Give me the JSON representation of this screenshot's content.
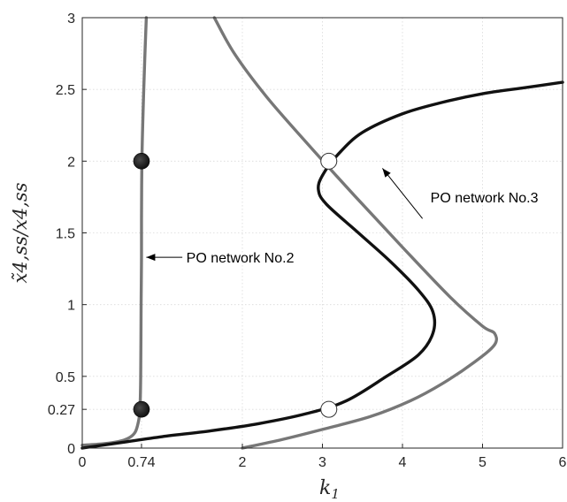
{
  "chart_data": {
    "type": "line",
    "title": "",
    "xlabel": "k",
    "xlabel_sub": "1",
    "ylabel": "x̃4,ss/x4,ss",
    "xlim": [
      0,
      6
    ],
    "ylim": [
      0,
      3
    ],
    "grid": true,
    "x_ticks": [
      {
        "value": 0,
        "label": "0"
      },
      {
        "value": 0.74,
        "label": "0.74"
      },
      {
        "value": 2,
        "label": "2"
      },
      {
        "value": 3,
        "label": "3"
      },
      {
        "value": 4,
        "label": "4"
      },
      {
        "value": 5,
        "label": "5"
      },
      {
        "value": 6,
        "label": "6"
      }
    ],
    "y_ticks": [
      {
        "value": 0,
        "label": "0"
      },
      {
        "value": 0.27,
        "label": "0.27"
      },
      {
        "value": 0.5,
        "label": "0.5"
      },
      {
        "value": 1,
        "label": "1"
      },
      {
        "value": 1.5,
        "label": "1.5"
      },
      {
        "value": 2,
        "label": "2"
      },
      {
        "value": 2.5,
        "label": "2.5"
      },
      {
        "value": 3,
        "label": "3"
      }
    ],
    "series": [
      {
        "name": "",
        "color": "#777777",
        "points": [
          [
            0,
            0.02
          ],
          [
            0.25,
            0.03
          ],
          [
            0.45,
            0.045
          ],
          [
            0.58,
            0.07
          ],
          [
            0.66,
            0.11
          ],
          [
            0.7,
            0.18
          ],
          [
            0.72,
            0.27
          ],
          [
            0.73,
            0.5
          ],
          [
            0.735,
            1.0
          ],
          [
            0.74,
            1.33
          ],
          [
            0.74,
            1.6
          ],
          [
            0.745,
            2.0
          ],
          [
            0.76,
            2.35
          ],
          [
            0.78,
            2.7
          ],
          [
            0.8,
            3.0
          ]
        ]
      },
      {
        "name": "",
        "color": "#777777",
        "points": [
          [
            1.65,
            3.0
          ],
          [
            1.9,
            2.75
          ],
          [
            2.3,
            2.45
          ],
          [
            2.8,
            2.13
          ],
          [
            3.4,
            1.76
          ],
          [
            4.0,
            1.4
          ],
          [
            4.6,
            1.05
          ],
          [
            5.0,
            0.85
          ],
          [
            5.15,
            0.8
          ],
          [
            5.15,
            0.72
          ],
          [
            4.9,
            0.6
          ],
          [
            4.5,
            0.45
          ],
          [
            4.1,
            0.33
          ],
          [
            3.6,
            0.22
          ],
          [
            3.0,
            0.13
          ],
          [
            2.5,
            0.06
          ],
          [
            2.0,
            0.0
          ]
        ]
      },
      {
        "name": "",
        "color": "#111111",
        "points": [
          [
            0,
            0.0
          ],
          [
            0.5,
            0.04
          ],
          [
            1.0,
            0.08
          ],
          [
            1.6,
            0.12
          ],
          [
            2.2,
            0.17
          ],
          [
            2.8,
            0.24
          ],
          [
            3.3,
            0.33
          ],
          [
            3.8,
            0.5
          ],
          [
            4.2,
            0.65
          ],
          [
            4.38,
            0.8
          ],
          [
            4.38,
            0.95
          ],
          [
            4.2,
            1.1
          ],
          [
            3.85,
            1.3
          ],
          [
            3.45,
            1.5
          ],
          [
            3.05,
            1.7
          ],
          [
            2.95,
            1.8
          ],
          [
            3.0,
            1.9
          ],
          [
            3.2,
            2.05
          ],
          [
            3.5,
            2.2
          ],
          [
            4.0,
            2.33
          ],
          [
            4.5,
            2.41
          ],
          [
            5.0,
            2.47
          ],
          [
            5.5,
            2.51
          ],
          [
            6.0,
            2.55
          ]
        ]
      }
    ],
    "markers": [
      {
        "x": 0.74,
        "y": 2.0,
        "style": "filled"
      },
      {
        "x": 0.74,
        "y": 0.27,
        "style": "filled"
      },
      {
        "x": 3.08,
        "y": 2.0,
        "style": "open"
      },
      {
        "x": 3.08,
        "y": 0.27,
        "style": "open"
      }
    ],
    "annotations": [
      {
        "text": "PO network No.2",
        "arrow_to": [
          0.8,
          1.33
        ],
        "arrow_from": [
          1.25,
          1.33
        ],
        "text_at": [
          1.3,
          1.33
        ]
      },
      {
        "text": "PO network No.3",
        "arrow_to": [
          3.75,
          1.95
        ],
        "arrow_from": [
          4.25,
          1.6
        ],
        "text_at": [
          4.35,
          1.75
        ]
      }
    ]
  }
}
